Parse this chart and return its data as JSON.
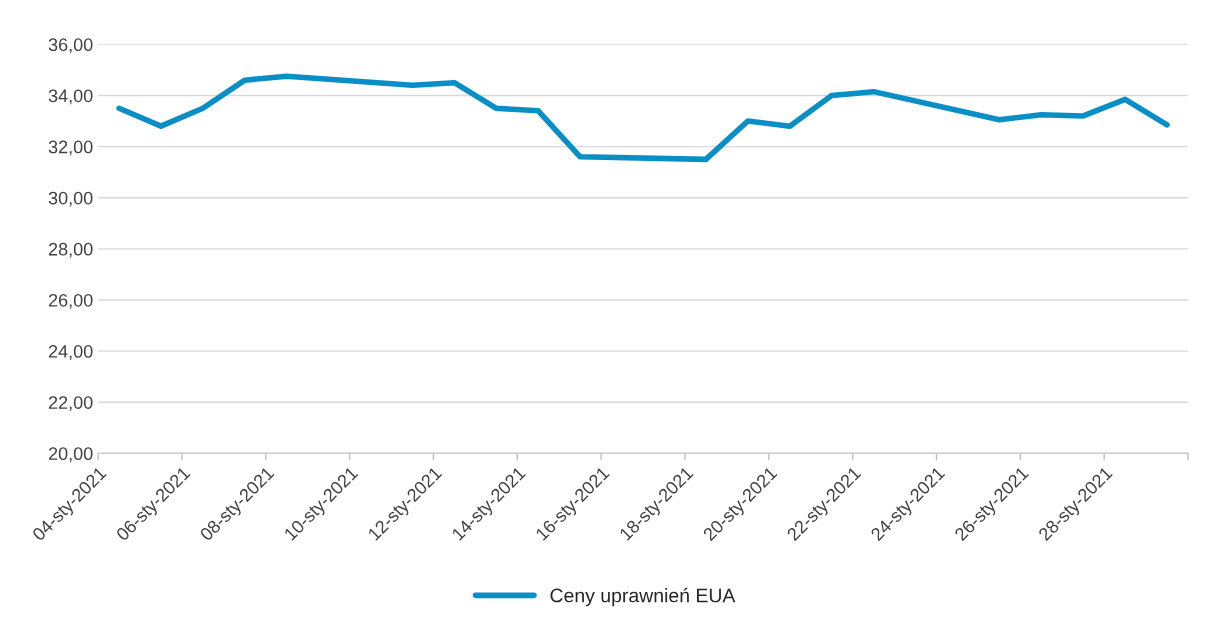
{
  "chart_data": {
    "type": "line",
    "x": [
      "2021-01-04T12:00",
      "2021-01-05T12:00",
      "2021-01-06T12:00",
      "2021-01-07T12:00",
      "2021-01-08T12:00",
      "2021-01-11T12:00",
      "2021-01-12T12:00",
      "2021-01-13T12:00",
      "2021-01-14T12:00",
      "2021-01-15T12:00",
      "2021-01-18T12:00",
      "2021-01-19T12:00",
      "2021-01-20T12:00",
      "2021-01-21T12:00",
      "2021-01-22T12:00",
      "2021-01-25T12:00",
      "2021-01-26T12:00",
      "2021-01-27T12:00",
      "2021-01-28T12:00",
      "2021-01-29T12:00"
    ],
    "series": [
      {
        "name": "Ceny uprawnień EUA",
        "color": "#0a8ec6",
        "values": [
          33.5,
          32.8,
          33.5,
          34.6,
          34.75,
          34.4,
          34.5,
          33.5,
          33.4,
          31.6,
          31.5,
          33.0,
          32.8,
          34.0,
          34.15,
          33.05,
          33.25,
          33.2,
          33.85,
          32.85
        ]
      }
    ],
    "xlim": [
      "2021-01-04",
      "2021-01-30"
    ],
    "xticks": [
      {
        "value": "2021-01-04",
        "label": "04-sty-2021"
      },
      {
        "value": "2021-01-06",
        "label": "06-sty-2021"
      },
      {
        "value": "2021-01-08",
        "label": "08-sty-2021"
      },
      {
        "value": "2021-01-10",
        "label": "10-sty-2021"
      },
      {
        "value": "2021-01-12",
        "label": "12-sty-2021"
      },
      {
        "value": "2021-01-14",
        "label": "14-sty-2021"
      },
      {
        "value": "2021-01-16",
        "label": "16-sty-2021"
      },
      {
        "value": "2021-01-18",
        "label": "18-sty-2021"
      },
      {
        "value": "2021-01-20",
        "label": "20-sty-2021"
      },
      {
        "value": "2021-01-22",
        "label": "22-sty-2021"
      },
      {
        "value": "2021-01-24",
        "label": "24-sty-2021"
      },
      {
        "value": "2021-01-26",
        "label": "26-sty-2021"
      },
      {
        "value": "2021-01-28",
        "label": "28-sty-2021"
      },
      {
        "value": "2021-01-30",
        "label": null
      }
    ],
    "ylim": [
      20,
      36
    ],
    "yticks": [
      {
        "value": 20,
        "label": "20,00"
      },
      {
        "value": 22,
        "label": "22,00"
      },
      {
        "value": 24,
        "label": "24,00"
      },
      {
        "value": 26,
        "label": "26,00"
      },
      {
        "value": 28,
        "label": "28,00"
      },
      {
        "value": 30,
        "label": "30,00"
      },
      {
        "value": 32,
        "label": "32,00"
      },
      {
        "value": 34,
        "label": "34,00"
      },
      {
        "value": 36,
        "label": "36,00"
      }
    ],
    "grid": "y",
    "legend": "bottom",
    "marker": "none",
    "line_style": "solid"
  }
}
